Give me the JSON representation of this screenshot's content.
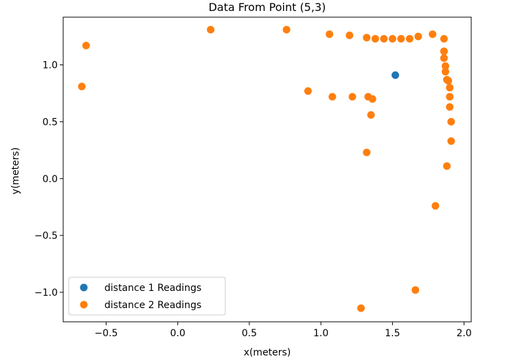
{
  "chart_data": {
    "type": "scatter",
    "title": "Data From Point (5,3)",
    "xlabel": "x(meters)",
    "ylabel": "y(meters)",
    "xlim": [
      -0.8,
      2.05
    ],
    "ylim": [
      -1.26,
      1.42
    ],
    "xticks": [
      -0.5,
      0.0,
      0.5,
      1.0,
      1.5,
      2.0
    ],
    "xtick_labels": [
      "−0.5",
      "0.0",
      "0.5",
      "1.0",
      "1.5",
      "2.0"
    ],
    "yticks": [
      -1.0,
      -0.5,
      0.0,
      0.5,
      1.0
    ],
    "ytick_labels": [
      "−1.0",
      "−0.5",
      "0.0",
      "0.5",
      "1.0"
    ],
    "grid": false,
    "legend_position": "lower-left",
    "series": [
      {
        "name": "distance 1 Readings",
        "color": "#1f77b4",
        "points": [
          [
            1.52,
            0.91
          ]
        ]
      },
      {
        "name": "distance 2 Readings",
        "color": "#ff7f0e",
        "points": [
          [
            -0.64,
            1.17
          ],
          [
            -0.67,
            0.81
          ],
          [
            0.23,
            1.31
          ],
          [
            0.76,
            1.31
          ],
          [
            1.06,
            1.27
          ],
          [
            1.2,
            1.26
          ],
          [
            1.32,
            1.24
          ],
          [
            1.38,
            1.23
          ],
          [
            1.44,
            1.23
          ],
          [
            1.5,
            1.23
          ],
          [
            1.56,
            1.23
          ],
          [
            1.62,
            1.23
          ],
          [
            1.68,
            1.25
          ],
          [
            1.78,
            1.27
          ],
          [
            1.86,
            1.23
          ],
          [
            1.86,
            1.12
          ],
          [
            1.86,
            1.06
          ],
          [
            1.87,
            0.99
          ],
          [
            1.87,
            0.94
          ],
          [
            1.88,
            0.87
          ],
          [
            1.89,
            0.86
          ],
          [
            1.9,
            0.8
          ],
          [
            1.9,
            0.72
          ],
          [
            1.9,
            0.63
          ],
          [
            1.91,
            0.5
          ],
          [
            1.91,
            0.33
          ],
          [
            1.88,
            0.11
          ],
          [
            0.91,
            0.77
          ],
          [
            1.08,
            0.72
          ],
          [
            1.22,
            0.72
          ],
          [
            1.33,
            0.72
          ],
          [
            1.36,
            0.7
          ],
          [
            1.35,
            0.56
          ],
          [
            1.32,
            0.23
          ],
          [
            1.8,
            -0.24
          ],
          [
            1.66,
            -0.98
          ],
          [
            1.28,
            -1.14
          ]
        ]
      }
    ]
  }
}
